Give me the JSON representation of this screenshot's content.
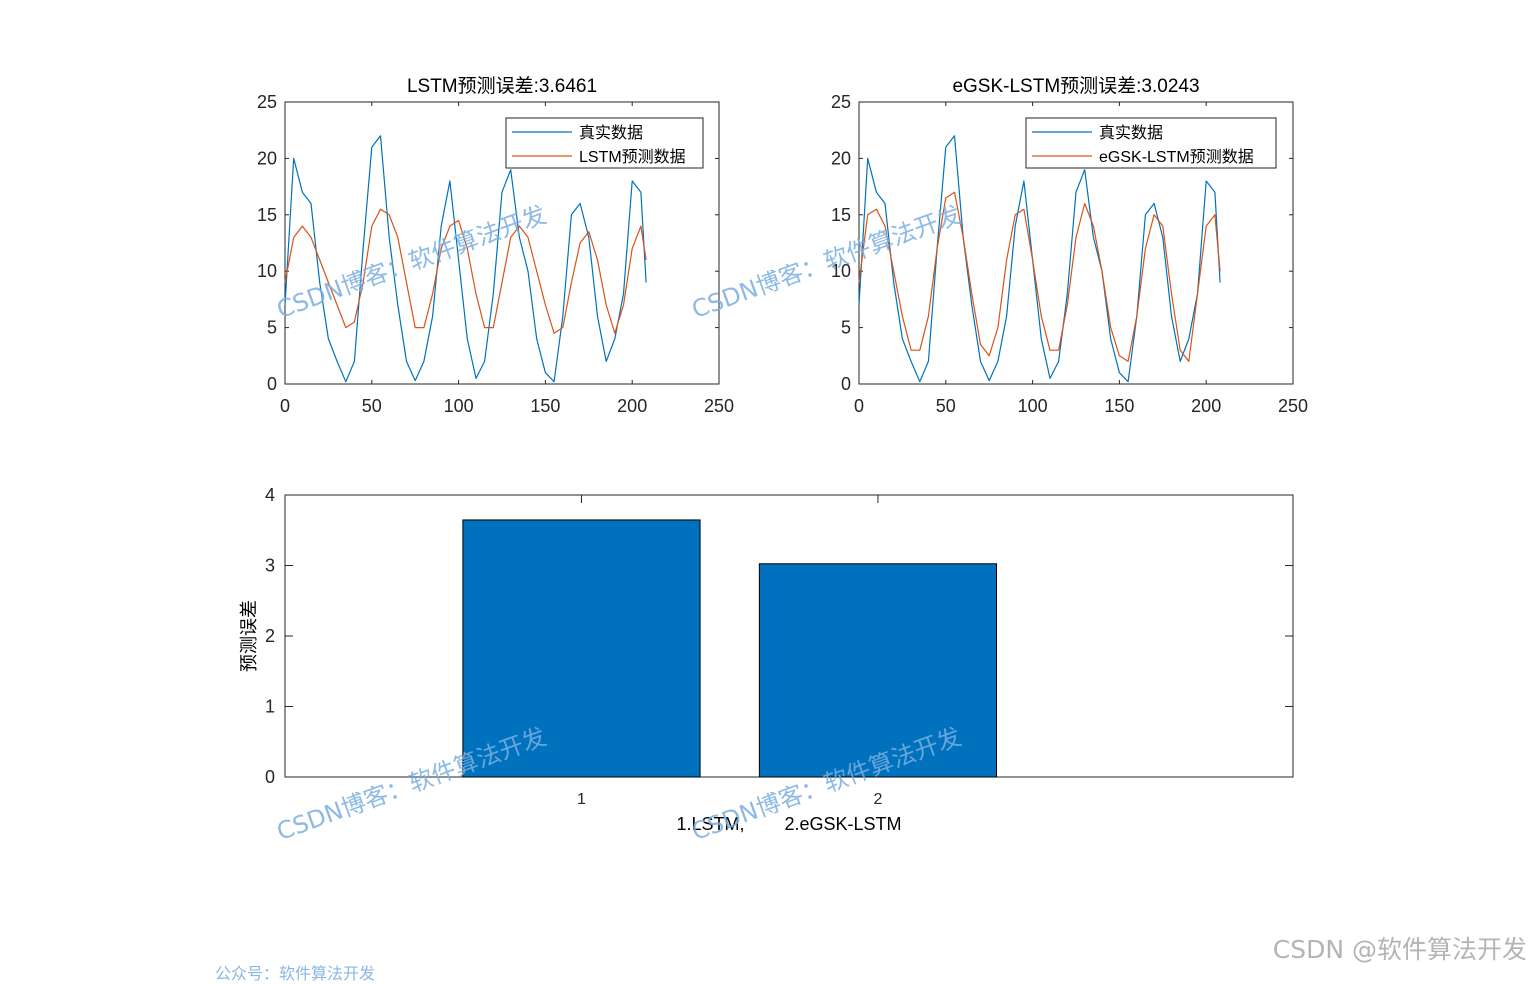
{
  "chart_data": [
    {
      "id": "lstm",
      "type": "line",
      "title": "LSTM预测误差:3.6461",
      "xlim": [
        0,
        250
      ],
      "ylim": [
        0,
        25
      ],
      "xticks": [
        "0",
        "50",
        "100",
        "150",
        "200",
        "250"
      ],
      "yticks": [
        "0",
        "5",
        "10",
        "15",
        "20",
        "25"
      ],
      "legend_position": "top-right",
      "legend": [
        "真实数据",
        "LSTM预测数据"
      ],
      "x": [
        0,
        5,
        10,
        15,
        20,
        25,
        30,
        35,
        40,
        45,
        50,
        55,
        60,
        65,
        70,
        75,
        80,
        85,
        90,
        95,
        100,
        105,
        110,
        115,
        120,
        125,
        130,
        135,
        140,
        145,
        150,
        155,
        160,
        165,
        170,
        175,
        180,
        185,
        190,
        195,
        200,
        205,
        208
      ],
      "series": [
        {
          "name": "真实数据",
          "color": "#0072BD",
          "values": [
            7,
            20,
            17,
            16,
            9,
            4,
            2,
            0.2,
            2,
            12,
            21,
            22,
            13,
            7,
            2,
            0.3,
            2,
            6,
            14,
            18,
            11,
            4,
            0.5,
            2,
            8,
            17,
            19,
            13,
            10,
            4,
            1,
            0.2,
            6,
            15,
            16,
            13,
            6,
            2,
            4,
            8,
            18,
            17,
            9
          ]
        },
        {
          "name": "LSTM预测数据",
          "color": "#D95319",
          "values": [
            9,
            13,
            14,
            13,
            11,
            9,
            7,
            5,
            5.5,
            9,
            14,
            15.5,
            15,
            13,
            9,
            5,
            5,
            8,
            12,
            14,
            14.5,
            12,
            8,
            5,
            5,
            9,
            13,
            14,
            13,
            10,
            7,
            4.5,
            5,
            9,
            12.5,
            13.5,
            11,
            7,
            4.5,
            7,
            12,
            14,
            11
          ]
        }
      ]
    },
    {
      "id": "egsk",
      "type": "line",
      "title": "eGSK-LSTM预测误差:3.0243",
      "xlim": [
        0,
        250
      ],
      "ylim": [
        0,
        25
      ],
      "xticks": [
        "0",
        "50",
        "100",
        "150",
        "200",
        "250"
      ],
      "yticks": [
        "0",
        "5",
        "10",
        "15",
        "20",
        "25"
      ],
      "legend_position": "top-right",
      "legend": [
        "真实数据",
        "eGSK-LSTM预测数据"
      ],
      "x": [
        0,
        5,
        10,
        15,
        20,
        25,
        30,
        35,
        40,
        45,
        50,
        55,
        60,
        65,
        70,
        75,
        80,
        85,
        90,
        95,
        100,
        105,
        110,
        115,
        120,
        125,
        130,
        135,
        140,
        145,
        150,
        155,
        160,
        165,
        170,
        175,
        180,
        185,
        190,
        195,
        200,
        205,
        208
      ],
      "series": [
        {
          "name": "真实数据",
          "color": "#0072BD",
          "values": [
            7,
            20,
            17,
            16,
            9,
            4,
            2,
            0.2,
            2,
            12,
            21,
            22,
            13,
            7,
            2,
            0.3,
            2,
            6,
            14,
            18,
            11,
            4,
            0.5,
            2,
            8,
            17,
            19,
            13,
            10,
            4,
            1,
            0.2,
            6,
            15,
            16,
            13,
            6,
            2,
            4,
            8,
            18,
            17,
            9
          ]
        },
        {
          "name": "eGSK-LSTM预测数据",
          "color": "#D95319",
          "values": [
            9,
            15,
            15.5,
            14,
            10,
            6,
            3,
            3,
            6,
            12,
            16.5,
            17,
            13,
            8,
            3.5,
            2.5,
            5,
            11,
            15,
            15.5,
            11,
            6,
            3,
            3,
            7,
            13,
            16,
            14,
            10,
            5,
            2.5,
            2,
            6,
            12,
            15,
            14,
            8,
            3,
            2,
            8,
            14,
            15,
            10
          ]
        }
      ]
    },
    {
      "id": "bar",
      "type": "bar",
      "categories": [
        "1",
        "2"
      ],
      "values": [
        3.6461,
        3.0243
      ],
      "xlabel": "1.LSTM,        2.eGSK-LSTM",
      "ylabel": "预测误差",
      "ylim": [
        0,
        4
      ],
      "yticks": [
        "0",
        "1",
        "2",
        "3",
        "4"
      ],
      "bar_color": "#0072BD"
    }
  ],
  "watermarks": {
    "text": "CSDN博客：软件算法开发",
    "footer": "CSDN @软件算法开发",
    "bottom_left": "公众号：软件算法开发"
  }
}
